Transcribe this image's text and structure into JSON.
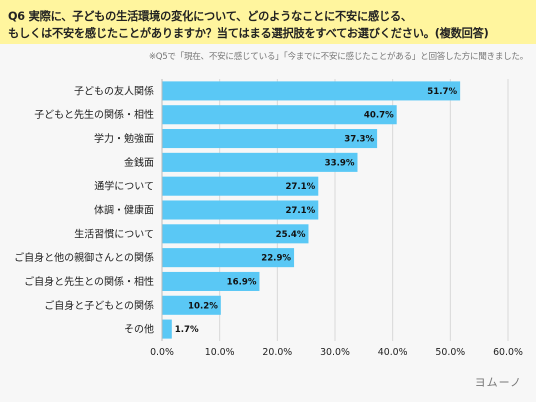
{
  "header": {
    "title_line1": "Q6 実際に、子どもの生活環境の変化について、どのようなことに不安に感じる、",
    "title_line2": "もしくは不安を感じたことがありますか？当てはまる選択肢をすべてお選びください。(複数回答)",
    "note": "※Q5で「現在、不安に感じている」「今までに不安に感じたことがある」と回答した方に聞きました。"
  },
  "logo": "ヨムーノ",
  "colors": {
    "bar": "#5ac8f5",
    "title_band": "#fff59e",
    "grid": "#d8d8d8"
  },
  "chart_data": {
    "type": "bar",
    "orientation": "horizontal",
    "categories": [
      "子どもの友人関係",
      "子どもと先生の関係・相性",
      "学力・勉強面",
      "金銭面",
      "通学について",
      "体調・健康面",
      "生活習慣について",
      "ご自身と他の親御さんとの関係",
      "ご自身と先生との関係・相性",
      "ご自身と子どもとの関係",
      "その他"
    ],
    "values": [
      51.7,
      40.7,
      37.3,
      33.9,
      27.1,
      27.1,
      25.4,
      22.9,
      16.9,
      10.2,
      1.7
    ],
    "value_labels": [
      "51.7%",
      "40.7%",
      "37.3%",
      "33.9%",
      "27.1%",
      "27.1%",
      "25.4%",
      "22.9%",
      "16.9%",
      "10.2%",
      "1.7%"
    ],
    "xlim": [
      0,
      60
    ],
    "xticks": [
      "0.0%",
      "10.0%",
      "20.0%",
      "30.0%",
      "40.0%",
      "50.0%",
      "60.0%"
    ],
    "grid": true
  }
}
